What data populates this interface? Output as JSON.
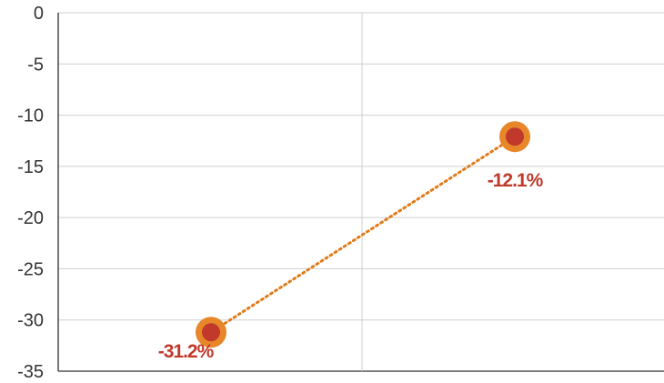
{
  "chart_data": {
    "type": "line",
    "x": [
      1,
      2
    ],
    "values": [
      -31.2,
      -12.1
    ],
    "data_labels": [
      "-31.2%",
      "-12.1%"
    ],
    "ylim": [
      -35,
      0
    ],
    "yticks": [
      0,
      -5,
      -10,
      -15,
      -20,
      -25,
      -30,
      -35
    ],
    "ytick_labels": [
      "0",
      "-5",
      "-10",
      "-15",
      "-20",
      "-25",
      "-30",
      "-35"
    ],
    "grid": true,
    "line_style": "dotted",
    "colors": {
      "line": "#e07b1a",
      "marker_outer": "#e8872a",
      "marker_inner": "#c0392b",
      "label": "#c0392b",
      "grid": "#cfcfcf"
    }
  }
}
